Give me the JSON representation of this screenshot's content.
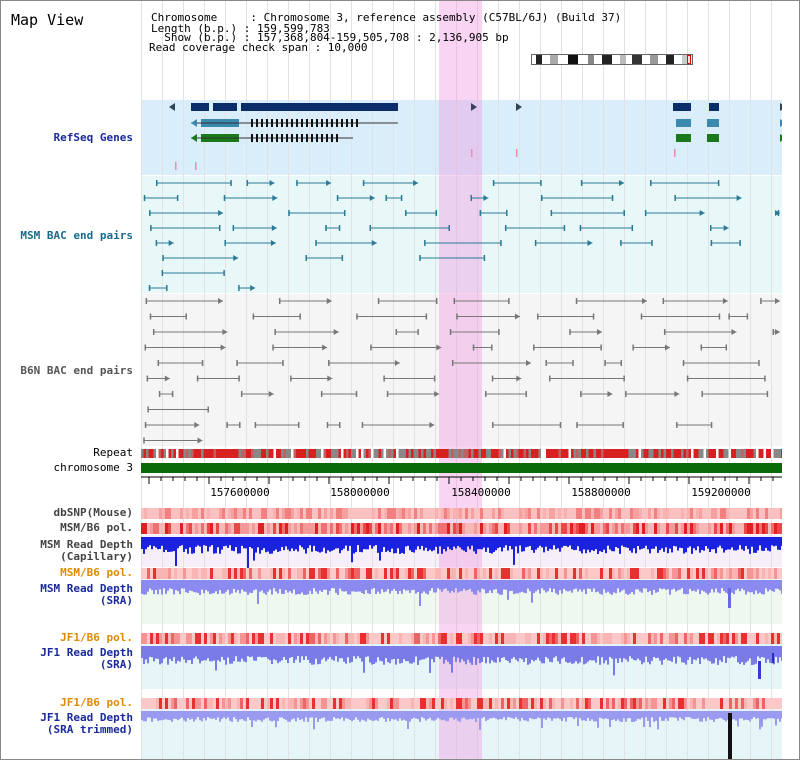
{
  "header": {
    "title": "Map View",
    "chromosome_line": "Chromosome     : Chromosome 3, reference assembly (C57BL/6J) (Build 37)",
    "length_line": "Length (b.p.) : 159,599,783",
    "show_line": "  Show (b.p.) : 157,368,804-159,505,708 : 2,136,905 bp",
    "coverage_line": "Read coverage check span : 10,000"
  },
  "tracks": {
    "refseq": "RefSeq Genes",
    "msm_bac": "MSM BAC end pairs",
    "b6n_bac": "B6N BAC end pairs",
    "repeat": "Repeat",
    "chromosome": "chromosome 3",
    "dbsnp": "dbSNP(Mouse)",
    "msm_b6_pol_1": "MSM/B6 pol.",
    "msm_read_depth_cap_1": "MSM Read Depth",
    "msm_read_depth_cap_2": "(Capillary)",
    "msm_b6_pol_2": "MSM/B6 pol.",
    "msm_read_depth_sra_1": "MSM Read Depth",
    "msm_read_depth_sra_2": "(SRA)",
    "jf1_b6_pol_1": "JF1/B6 pol.",
    "jf1_read_depth_sra_1": "JF1 Read Depth",
    "jf1_read_depth_sra_2": "(SRA)",
    "jf1_b6_pol_2": "JF1/B6 pol.",
    "jf1_read_depth_trim_1": "JF1 Read Depth",
    "jf1_read_depth_trim_2": "(SRA trimmed)"
  },
  "axis": {
    "ticks": [
      "157600000",
      "158000000",
      "158400000",
      "158800000",
      "159200000"
    ]
  },
  "colors": {
    "refseq_bg": "#d9eefa",
    "msm_bg": "#e8f7f8",
    "b6n_bg": "#f4f4f4",
    "highlight": "#f5c7ef",
    "chromosome": "#0a6a0a",
    "gene_dark": "#0b2e6a",
    "gene_teal": "#3a8ab0",
    "gene_green": "#1a7a1a",
    "msm_feature": "#2a7a95",
    "b6n_feature": "#777777",
    "depth_dark_blue": "#1a22e0",
    "depth_light_blue": "#8a8af0"
  }
}
